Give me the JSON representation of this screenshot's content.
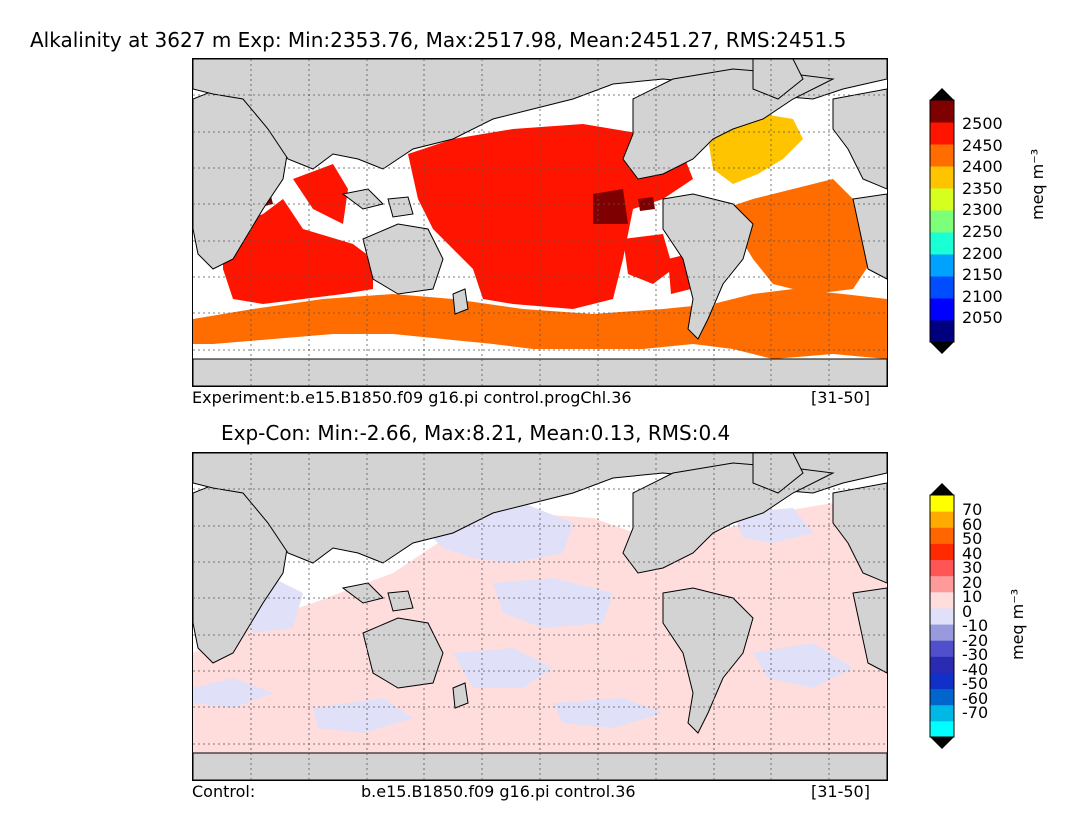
{
  "top_panel": {
    "title": "Alkalinity at 3627 m Exp: Min:2353.76, Max:2517.98, Mean:2451.27, RMS:2451.5",
    "caption_left": "Experiment:b.e15.B1850.f09 g16.pi control.progChl.36",
    "caption_right": "[31-50]",
    "colorbar": {
      "unit_label": "meq m⁻³",
      "tick_labels": [
        "2500",
        "2450",
        "2400",
        "2350",
        "2300",
        "2250",
        "2200",
        "2150",
        "2100",
        "2050"
      ],
      "colors": [
        "#00007f",
        "#0000ff",
        "#004dff",
        "#00a2ff",
        "#19ffd6",
        "#7dff7a",
        "#d6ff1f",
        "#ffc400",
        "#ff6c00",
        "#ff1400",
        "#7f0000"
      ],
      "over_color": "#000000",
      "under_color": "#000000"
    }
  },
  "bottom_panel": {
    "title": "Exp-Con: Min:-2.66, Max:8.21, Mean:0.13, RMS:0.4",
    "caption_left": "Control:",
    "caption_mid": "b.e15.B1850.f09 g16.pi control.36",
    "caption_right": "[31-50]",
    "colorbar": {
      "unit_label": "meq m⁻³",
      "tick_labels": [
        "70",
        "60",
        "50",
        "40",
        "30",
        "20",
        "10",
        "0",
        "-10",
        "-20",
        "-30",
        "-40",
        "-50",
        "-60",
        "-70"
      ],
      "colors": [
        "#00ffff",
        "#00b8e6",
        "#0066cc",
        "#1030c8",
        "#2a2ab3",
        "#5050cc",
        "#9999dd",
        "#e0e0f8",
        "#ffdddd",
        "#ff9a9a",
        "#ff5555",
        "#ff2a00",
        "#ff6600",
        "#ffaa00",
        "#ffff00"
      ],
      "over_color": "#000000",
      "under_color": "#000000"
    }
  },
  "colors": {
    "land": "#d3d3d3",
    "ocean_missing": "#ffffff",
    "coast": "#000000",
    "grid": "#555555"
  }
}
